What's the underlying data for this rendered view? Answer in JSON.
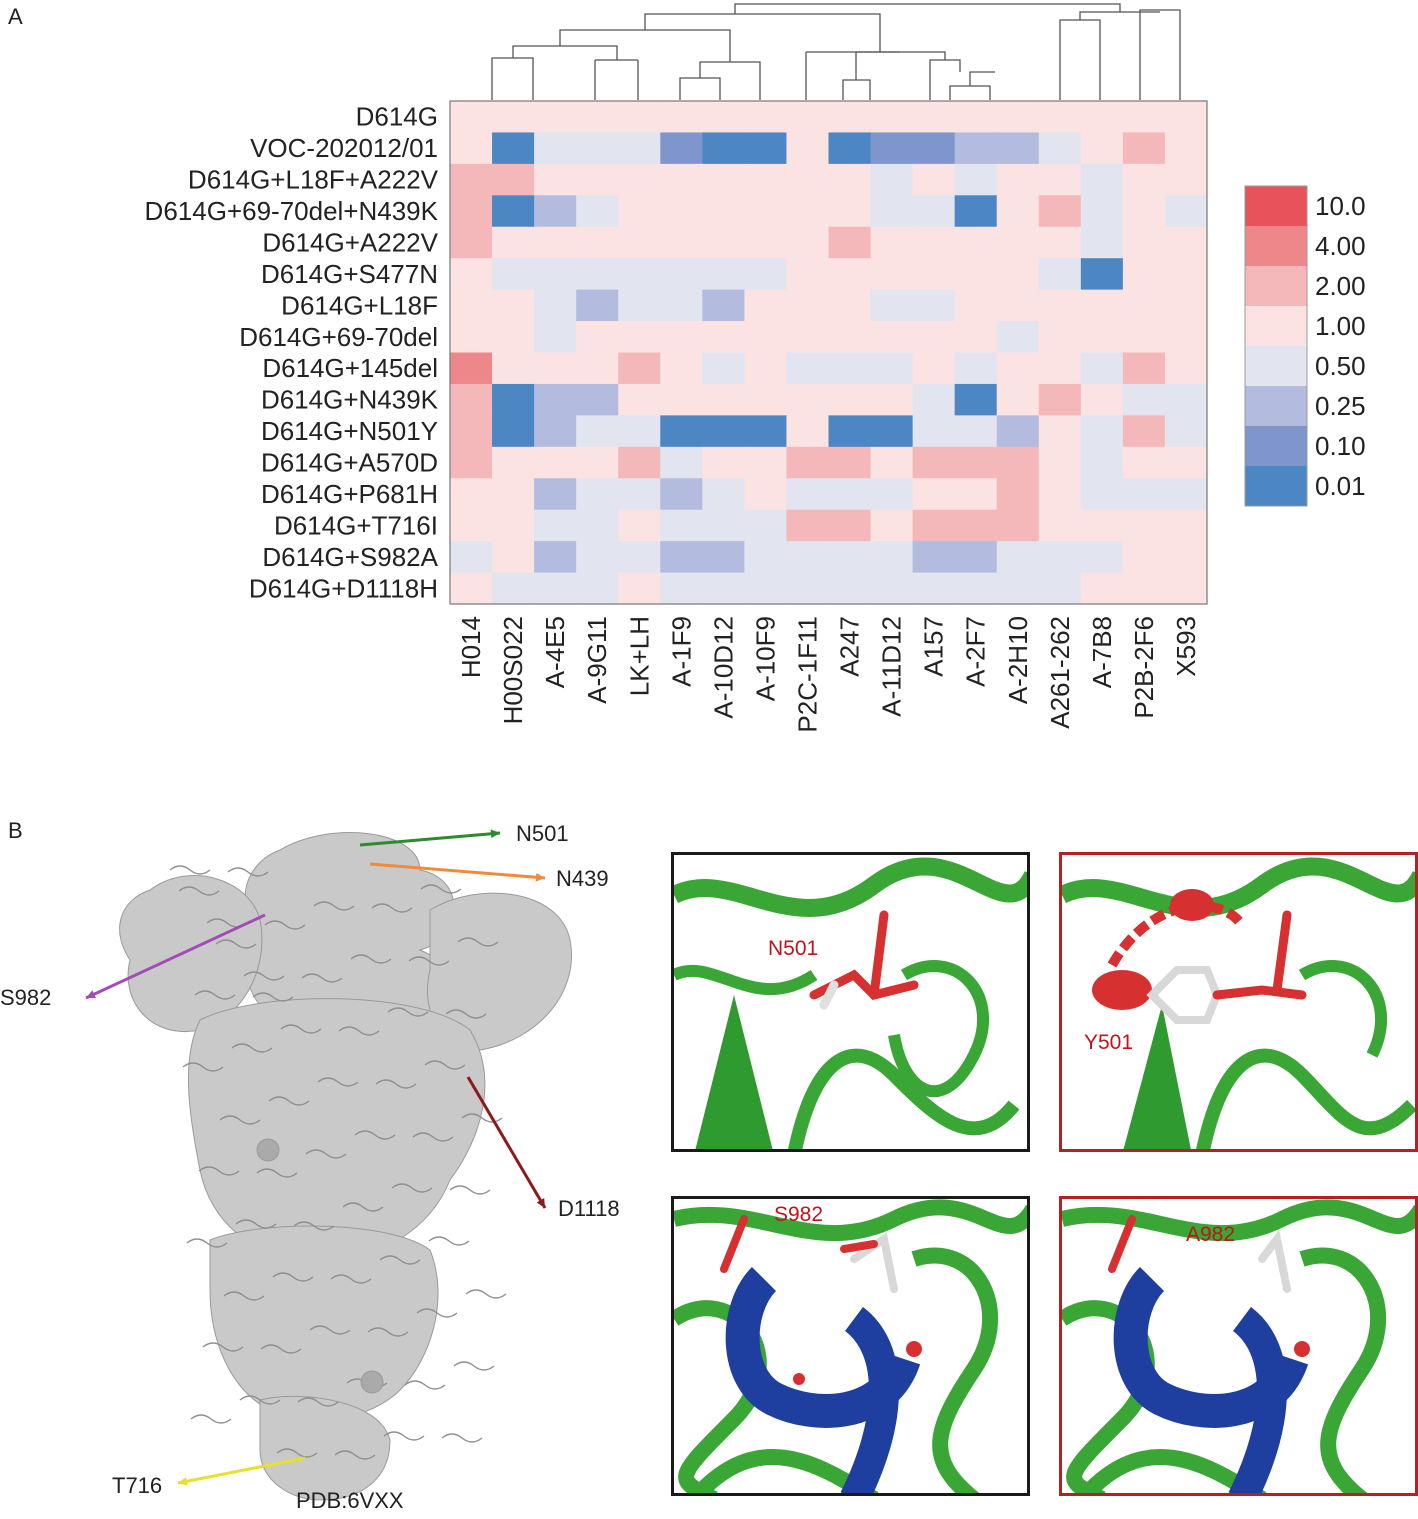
{
  "panels": {
    "a": "A",
    "b": "B"
  },
  "chart_data": {
    "type": "heatmap",
    "title": "",
    "rows": [
      "D614G",
      "VOC-202012/01",
      "D614G+L18F+A222V",
      "D614G+69-70del+N439K",
      "D614G+A222V",
      "D614G+S477N",
      "D614G+L18F",
      "D614G+69-70del",
      "D614G+145del",
      "D614G+N439K",
      "D614G+N501Y",
      "D614G+A570D",
      "D614G+P681H",
      "D614G+T716I",
      "D614G+S982A",
      "D614G+D1118H"
    ],
    "columns": [
      "H014",
      "H00S022",
      "A-4E5",
      "A-9G11",
      "LK+LH",
      "A-1F9",
      "A-10D12",
      "A-10F9",
      "P2C-1F11",
      "A247",
      "A-11D12",
      "A157",
      "A-2F7",
      "A-2H10",
      "A261-262",
      "A-7B8",
      "P2B-2F6",
      "X593"
    ],
    "values": [
      [
        1,
        1,
        1,
        1,
        1,
        1,
        1,
        1,
        1,
        1,
        1,
        1,
        1,
        1,
        1,
        1,
        1,
        1
      ],
      [
        1,
        0.01,
        0.5,
        0.5,
        0.5,
        0.1,
        0.01,
        0.01,
        1,
        0.01,
        0.1,
        0.1,
        0.25,
        0.25,
        0.5,
        1,
        2,
        1
      ],
      [
        2,
        2,
        1,
        1,
        1,
        1,
        1,
        1,
        1,
        1,
        0.5,
        1,
        0.5,
        1,
        1,
        0.5,
        1,
        1
      ],
      [
        2,
        0.01,
        0.25,
        0.5,
        1,
        1,
        1,
        1,
        1,
        1,
        0.5,
        0.5,
        0.01,
        1,
        2,
        0.5,
        1,
        0.5
      ],
      [
        2,
        1,
        1,
        1,
        1,
        1,
        1,
        1,
        1,
        2,
        1,
        1,
        1,
        1,
        1,
        0.5,
        1,
        1
      ],
      [
        1,
        0.5,
        0.5,
        0.5,
        0.5,
        0.5,
        0.5,
        0.5,
        1,
        1,
        1,
        1,
        1,
        1,
        0.5,
        0.01,
        1,
        1
      ],
      [
        1,
        1,
        0.5,
        0.25,
        0.5,
        0.5,
        0.25,
        1,
        1,
        1,
        0.5,
        0.5,
        1,
        1,
        1,
        1,
        1,
        1
      ],
      [
        1,
        1,
        0.5,
        1,
        1,
        1,
        1,
        1,
        1,
        1,
        1,
        1,
        1,
        0.5,
        1,
        1,
        1,
        1
      ],
      [
        4,
        1,
        1,
        1,
        2,
        1,
        0.5,
        1,
        0.5,
        0.5,
        0.5,
        1,
        0.5,
        1,
        1,
        0.5,
        2,
        1
      ],
      [
        2,
        0.01,
        0.25,
        0.25,
        1,
        1,
        1,
        1,
        1,
        1,
        1,
        0.5,
        0.01,
        1,
        2,
        1,
        0.5,
        0.5
      ],
      [
        2,
        0.01,
        0.25,
        0.5,
        0.5,
        0.01,
        0.01,
        0.01,
        1,
        0.01,
        0.01,
        0.5,
        0.5,
        0.25,
        1,
        0.5,
        2,
        0.5
      ],
      [
        2,
        1,
        1,
        1,
        2,
        0.5,
        1,
        1,
        2,
        2,
        1,
        2,
        2,
        2,
        1,
        0.5,
        1,
        1
      ],
      [
        1,
        1,
        0.25,
        0.5,
        0.5,
        0.25,
        0.5,
        1,
        0.5,
        0.5,
        0.5,
        1,
        1,
        2,
        1,
        0.5,
        0.5,
        0.5
      ],
      [
        1,
        1,
        0.5,
        0.5,
        1,
        0.5,
        0.5,
        0.5,
        2,
        2,
        1,
        2,
        2,
        2,
        1,
        1,
        1,
        1
      ],
      [
        0.5,
        1,
        0.25,
        0.5,
        0.5,
        0.25,
        0.25,
        0.5,
        0.5,
        0.5,
        0.5,
        0.25,
        0.25,
        0.5,
        0.5,
        0.5,
        1,
        1
      ],
      [
        1,
        0.5,
        0.5,
        0.5,
        1,
        0.5,
        0.5,
        0.5,
        0.5,
        0.5,
        0.5,
        0.5,
        0.5,
        0.5,
        0.5,
        1,
        1,
        1
      ]
    ],
    "legend": {
      "levels": [
        "10.0",
        "4.00",
        "2.00",
        "1.00",
        "0.50",
        "0.25",
        "0.10",
        "0.01"
      ],
      "colors": [
        "#e8525a",
        "#ee8789",
        "#f5b8ba",
        "#fbe3e3",
        "#e2e4f0",
        "#b3bcdf",
        "#7f96cd",
        "#4c86c3"
      ]
    }
  },
  "structure": {
    "caption": "PDB:6VXX",
    "arrows": [
      {
        "label": "N501",
        "color": "#2d8a2d"
      },
      {
        "label": "N439",
        "color": "#f08a3c"
      },
      {
        "label": "S982",
        "color": "#a24cb5"
      },
      {
        "label": "D1118",
        "color": "#8b1a1a"
      },
      {
        "label": "T716",
        "color": "#e8e02a"
      }
    ]
  },
  "insets": {
    "n501": "N501",
    "y501": "Y501",
    "s982": "S982",
    "a982": "A982"
  }
}
